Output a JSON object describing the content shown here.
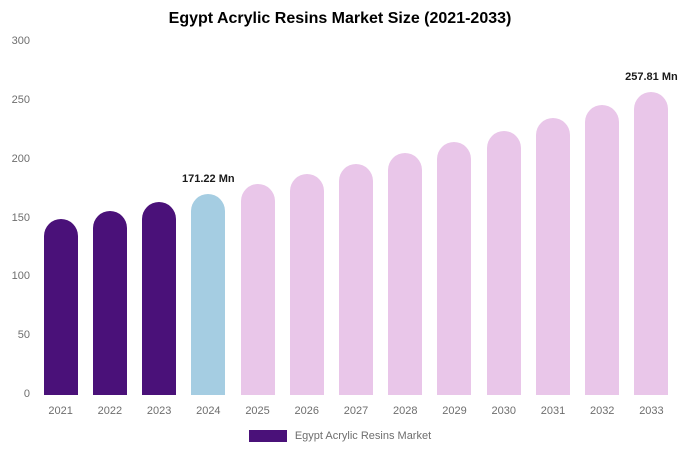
{
  "title": "Egypt Acrylic Resins Market Size (2021-2033)",
  "legend": {
    "label": "Egypt Acrylic Resins Market",
    "swatch_color": "#4a1179"
  },
  "colors": {
    "historical": "#4a1179",
    "current": "#a5cde2",
    "forecast": "#e9c6e9",
    "axis_text": "#6e6e6e",
    "data_label": "#1a1a1a"
  },
  "chart_data": {
    "type": "bar",
    "title": "Egypt Acrylic Resins Market Size (2021-2033)",
    "xlabel": "",
    "ylabel": "",
    "categories": [
      "2021",
      "2022",
      "2023",
      "2024",
      "2025",
      "2026",
      "2027",
      "2028",
      "2029",
      "2030",
      "2031",
      "2032",
      "2033"
    ],
    "values": [
      149.6,
      156.5,
      163.7,
      171.22,
      179.2,
      187.5,
      196.2,
      205.3,
      214.8,
      224.8,
      235.2,
      246.1,
      257.81
    ],
    "bar_colors": [
      "#4a1179",
      "#4a1179",
      "#4a1179",
      "#a5cde2",
      "#e9c6e9",
      "#e9c6e9",
      "#e9c6e9",
      "#e9c6e9",
      "#e9c6e9",
      "#e9c6e9",
      "#e9c6e9",
      "#e9c6e9",
      "#e9c6e9"
    ],
    "annotations": [
      {
        "category": "2024",
        "text": "171.22 Mn"
      },
      {
        "category": "2033",
        "text": "257.81 Mn"
      }
    ],
    "ylim": [
      0,
      300
    ],
    "yticks": [
      0,
      50,
      100,
      150,
      200,
      250,
      300
    ],
    "grid": false,
    "legend_position": "bottom",
    "legend_entries": [
      "Egypt Acrylic Resins Market"
    ]
  }
}
